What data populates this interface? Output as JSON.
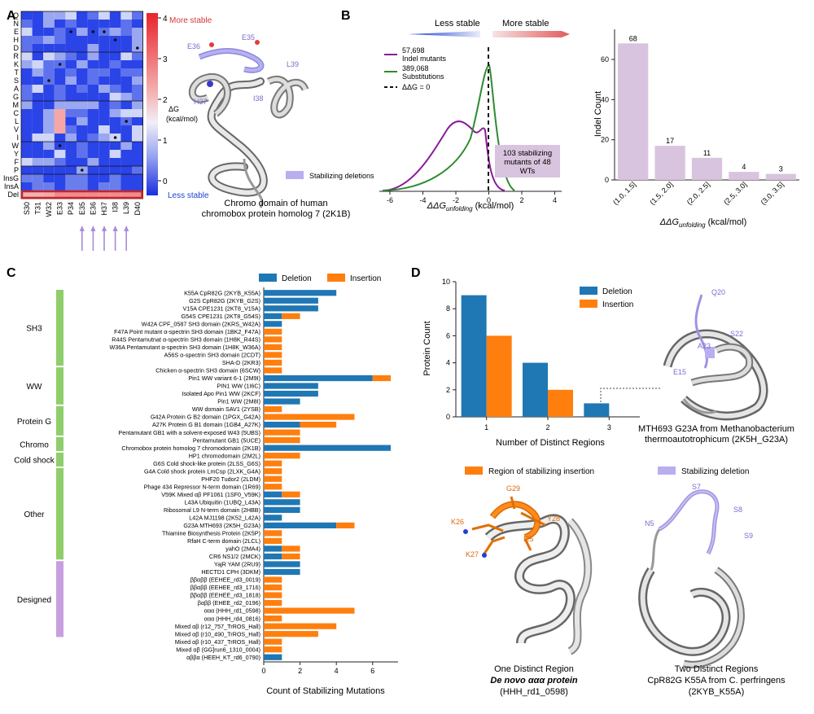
{
  "panels": {
    "a": "A",
    "b": "B",
    "c": "C",
    "d": "D"
  },
  "panelA": {
    "rows": [
      "Q",
      "N",
      "E",
      "H",
      "D",
      "R",
      "K",
      "T",
      "S",
      "A",
      "G",
      "M",
      "C",
      "L",
      "V",
      "I",
      "W",
      "Y",
      "F",
      "P",
      "InsG",
      "InsA",
      "Del"
    ],
    "cols": [
      "S30",
      "T31",
      "W32",
      "E33",
      "P34",
      "E35",
      "E36",
      "H37",
      "I38",
      "L39",
      "D40"
    ],
    "colorbar": {
      "ticks": [
        "4",
        "3",
        "2",
        "1",
        "0"
      ],
      "top": "More stable",
      "bottom": "Less stable",
      "title": "ΔG",
      "unit": "(kcal/mol)"
    },
    "colors": {
      "stable": "#e74c3c",
      "unstable": "#1f3fd6",
      "highlight": "#c0262d",
      "arrow": "#a78bd9"
    },
    "structure": {
      "labels": [
        "E36",
        "E35",
        "L39",
        "H37",
        "I38"
      ],
      "caption_line1": "Chromo domain of human",
      "caption_line2": "chromobox protein homolog 7 (2K1B)",
      "legend": "Stabilizing deletions"
    }
  },
  "panelB": {
    "arrows": {
      "left": "Less stable",
      "right": "More stable"
    },
    "legend": [
      {
        "count": "57,698",
        "label": "Indel mutants",
        "color": "#8b1a9b"
      },
      {
        "count": "389,068",
        "label": "Substitutions",
        "color": "#2e8b2e"
      },
      {
        "label": "ΔΔG = 0",
        "color": "#111111"
      }
    ],
    "xticks": [
      "-6",
      "-4",
      "-2",
      "0",
      "2",
      "4"
    ],
    "xlabel_main": "ΔΔG",
    "xlabel_sub": "unfolding",
    "xlabel_unit": " (kcal/mol)",
    "annotation": [
      "103 stabilizing",
      "mutants of 48",
      "WTs"
    ],
    "annotation_color": "#d8c4de"
  },
  "chart_data": [
    {
      "type": "bar",
      "title": "",
      "categories": [
        "(1.0, 1.5]",
        "(1.5, 2.0]",
        "(2.0, 2.5]",
        "(2.5, 3.0]",
        "(3.0, 3.5]"
      ],
      "values": [
        68,
        17,
        11,
        4,
        3
      ],
      "ylabel": "Indel Count",
      "xlabel_main": "ΔΔG",
      "xlabel_sub": "unfolding",
      "xlabel_unit": " (kcal/mol)",
      "ylim": [
        0,
        75
      ],
      "yticks": [
        "0",
        "20",
        "40",
        "60"
      ],
      "color": "#d8c4de"
    },
    {
      "type": "bar",
      "orientation": "horizontal-stacked",
      "xlabel": "Count of Stabilizing Mutations",
      "xticks": [
        "0",
        "2",
        "4",
        "6"
      ],
      "xlim": [
        0,
        7.4
      ],
      "legend": [
        {
          "name": "Deletion",
          "color": "#1f77b4"
        },
        {
          "name": "Insertion",
          "color": "#ff7f0e"
        }
      ],
      "groups": [
        {
          "name": "SH3",
          "color": "#8fce6a",
          "start": 0,
          "end": 10
        },
        {
          "name": "WW",
          "color": "#8fce6a",
          "start": 10,
          "end": 15
        },
        {
          "name": "Protein G",
          "color": "#8fce6a",
          "start": 15,
          "end": 19
        },
        {
          "name": "Chromo",
          "color": "#8fce6a",
          "start": 19,
          "end": 21
        },
        {
          "name": "Cold shock",
          "color": "#8fce6a",
          "start": 21,
          "end": 23
        },
        {
          "name": "Other",
          "color": "#8fce6a",
          "start": 23,
          "end": 35
        },
        {
          "name": "Designed",
          "color": "#c79fdf",
          "start": 35,
          "end": 45
        }
      ],
      "rows": [
        {
          "label": "K55A CpR82G (2KYB_K55A)",
          "deletion": 4,
          "insertion": 0
        },
        {
          "label": "G2S CpR82G (2KYB_G2S)",
          "deletion": 3,
          "insertion": 0
        },
        {
          "label": "V15A CPE1231 (2KT8_V15A)",
          "deletion": 3,
          "insertion": 0
        },
        {
          "label": "G54S CPE1231 (2KT8_G54S)",
          "deletion": 1,
          "insertion": 1
        },
        {
          "label": "W42A CPF_0587 SH3 domain (2KRS_W42A)",
          "deletion": 1,
          "insertion": 0
        },
        {
          "label": "F47A Point mutant α-spectrin SH3 domain (1BK2_F47A)",
          "deletion": 0,
          "insertion": 1
        },
        {
          "label": "R44S Pentamutnat α-spectrin SH3 domain (1H8K_R44S)",
          "deletion": 0,
          "insertion": 1
        },
        {
          "label": "W36A Pentamutant α-spectrin SH3 domain (1H8K_W36A)",
          "deletion": 0,
          "insertion": 1
        },
        {
          "label": "A56S α-spectrin SH3 domain (2CDT)",
          "deletion": 0,
          "insertion": 1
        },
        {
          "label": "SHA-D (2KR3)",
          "deletion": 0,
          "insertion": 1
        },
        {
          "label": "Chicken α-spectrin SH3 domain (6SCW)",
          "deletion": 0,
          "insertion": 1
        },
        {
          "label": "Pin1 WW variant 6-1 (2M9I)",
          "deletion": 6,
          "insertion": 1
        },
        {
          "label": "PIN1 WW (1I6C)",
          "deletion": 3,
          "insertion": 0
        },
        {
          "label": "Isolated Apo Pin1 WW (2KCF)",
          "deletion": 3,
          "insertion": 0
        },
        {
          "label": "Pin1 WW (2M8I)",
          "deletion": 2,
          "insertion": 0
        },
        {
          "label": "WW domain SAV1 (2YSB)",
          "deletion": 0,
          "insertion": 1
        },
        {
          "label": "G42A Protein G B2 domain (1PGX_G42A)",
          "deletion": 0,
          "insertion": 5
        },
        {
          "label": "A27K Protein G B1 domain (1GB4_A27K)",
          "deletion": 2,
          "insertion": 2
        },
        {
          "label": "Pentamutant GB1 with a solvent-exposed W43 (5UBS)",
          "deletion": 0,
          "insertion": 2
        },
        {
          "label": "Pentamutant GB1 (5UCE)",
          "deletion": 0,
          "insertion": 2
        },
        {
          "label": "Chromobox protein homolog 7 chromodomain (2K1B)",
          "deletion": 7,
          "insertion": 0
        },
        {
          "label": "HP1 chromodomain (2M2L)",
          "deletion": 0,
          "insertion": 2
        },
        {
          "label": "G6S Cold shock-like protein (2LSS_G6S)",
          "deletion": 0,
          "insertion": 1
        },
        {
          "label": "G4A Cold shock protein LmCsp (2LXK_G4A)",
          "deletion": 0,
          "insertion": 1
        },
        {
          "label": "PHF20 Tudor2 (2LDM)",
          "deletion": 0,
          "insertion": 1
        },
        {
          "label": "Phage 434 Repressor N-term domain (1R69)",
          "deletion": 0,
          "insertion": 1
        },
        {
          "label": "V59K Mixed αβ PF1061 (1SF0_V59K)",
          "deletion": 1,
          "insertion": 1
        },
        {
          "label": "L43A Ubiquitin (1UBQ_L43A)",
          "deletion": 2,
          "insertion": 0
        },
        {
          "label": "Ribosomal L9 N-term domain (2HBB)",
          "deletion": 2,
          "insertion": 0
        },
        {
          "label": "L42A MJ1198 (2K52_L42A)",
          "deletion": 1,
          "insertion": 0
        },
        {
          "label": "G23A MTH693 (2K5H_G23A)",
          "deletion": 4,
          "insertion": 1
        },
        {
          "label": "Thiamine Biosynthesis Protein (2K5P)",
          "deletion": 0,
          "insertion": 1
        },
        {
          "label": "RfaH C-term domain (2LCL)",
          "deletion": 0,
          "insertion": 1
        },
        {
          "label": "yahO (2MA4)",
          "deletion": 1,
          "insertion": 1
        },
        {
          "label": "CR6 NS1/2 (2MCK)",
          "deletion": 1,
          "insertion": 1
        },
        {
          "label": "YajR YAM (2RU9)",
          "deletion": 2,
          "insertion": 0
        },
        {
          "label": "HECTD1 CPH (3DKM)",
          "deletion": 2,
          "insertion": 0
        },
        {
          "label": "ββαββ (EEHEE_rd3_0019)",
          "deletion": 0,
          "insertion": 1
        },
        {
          "label": "ββαββ (EEHEE_rd3_1716)",
          "deletion": 0,
          "insertion": 1
        },
        {
          "label": "ββαββ (EEHEE_rd3_1818)",
          "deletion": 0,
          "insertion": 1
        },
        {
          "label": "βαββ (EHEE_rd2_0196)",
          "deletion": 0,
          "insertion": 1
        },
        {
          "label": "ααα (HHH_rd1_0598)",
          "deletion": 0,
          "insertion": 5
        },
        {
          "label": "ααα (HHH_rd4_0816)",
          "deletion": 0,
          "insertion": 1
        },
        {
          "label": "Mixed αβ (r12_757_TrROS_Hall)",
          "deletion": 0,
          "insertion": 4
        },
        {
          "label": "Mixed αβ (r10_490_TrROS_Hall)",
          "deletion": 0,
          "insertion": 3
        },
        {
          "label": "Mixed αβ (r10_437_TrROS_Hall)",
          "deletion": 0,
          "insertion": 1
        },
        {
          "label": "Mixed αβ (GG]run6_1310_0004)",
          "deletion": 0,
          "insertion": 1
        },
        {
          "label": "αββα (HEEH_KT_rd6_0790)",
          "deletion": 1,
          "insertion": 0
        }
      ]
    },
    {
      "type": "bar",
      "categories": [
        "1",
        "2",
        "3"
      ],
      "series": [
        {
          "name": "Deletion",
          "values": [
            9,
            4,
            1
          ],
          "color": "#1f77b4"
        },
        {
          "name": "Insertion",
          "values": [
            6,
            2,
            0
          ],
          "color": "#ff7f0e"
        }
      ],
      "ylabel": "Protein Count",
      "xlabel": "Number of Distinct Regions",
      "ylim": [
        0,
        10
      ],
      "yticks": [
        "0",
        "2",
        "4",
        "6",
        "8",
        "10"
      ]
    }
  ],
  "panelD": {
    "top_caption": [
      "MTH693 G23A from Methanobacterium",
      "thermoautotrophicum (2K5H_G23A)"
    ],
    "top_labels": [
      "Q20",
      "S22",
      "A23",
      "E15"
    ],
    "legend_insertion": "Region of stabilizing insertion",
    "legend_deletion": "Stabilizing deletion",
    "left_labels": [
      "G29",
      "K26",
      "Y28",
      "I25",
      "K27"
    ],
    "left_caption": [
      "One Distinct Region",
      "De novo ααα protein",
      "(HHH_rd1_0598)"
    ],
    "right_labels": [
      "S7",
      "N5",
      "S8",
      "S9"
    ],
    "right_caption": [
      "Two Distinct Regions",
      "CpR82G K55A from C. perfringens",
      "(2KYB_K55A)"
    ]
  }
}
